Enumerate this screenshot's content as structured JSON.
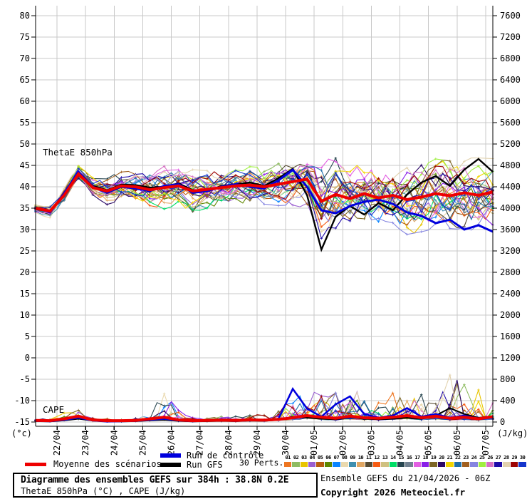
{
  "colors": {
    "mean": "#ee0000",
    "control": "#0000dd",
    "gfs": "#000000",
    "grid": "#c8c8c8",
    "axis": "#000000"
  },
  "legend": {
    "mean": "Moyenne des scénarios",
    "control": "Run de contrôle",
    "gfs": "Run GFS",
    "perts": "30 Perts."
  },
  "footer": {
    "title": "Diagramme des ensembles GEFS sur 384h : 38.8N 0.2E",
    "subtitle": "ThetaE 850hPa (°C) , CAPE (J/kg)",
    "run_info": "Ensemble GEFS du 21/04/2026 - 06Z",
    "copyright": "Copyright 2026 Meteociel.fr"
  },
  "chart_data": {
    "type": "line",
    "title": "Diagramme des ensembles GEFS sur 384h : 38.8N 0.2E",
    "x_dates": [
      "22/04",
      "23/04",
      "24/04",
      "25/04",
      "26/04",
      "27/04",
      "28/04",
      "29/04",
      "30/04",
      "01/05",
      "02/05",
      "03/05",
      "04/05",
      "05/05",
      "06/05",
      "07/05"
    ],
    "total_hours": 384,
    "step_hours": 12,
    "y_left": {
      "unit": "(°c)",
      "min": -15,
      "max": 80,
      "tick_step": 5,
      "ticks": [
        "80",
        "75",
        "70",
        "65",
        "60",
        "55",
        "50",
        "45",
        "40",
        "35",
        "30",
        "25",
        "20",
        "15",
        "10",
        "5",
        "0",
        "-5",
        "-10",
        "-15"
      ]
    },
    "y_right": {
      "unit": "(J/kg)",
      "min": 0,
      "max": 7600,
      "tick_step": 400,
      "ticks": [
        "7600",
        "7200",
        "6800",
        "6400",
        "6000",
        "5600",
        "5200",
        "4800",
        "4400",
        "4000",
        "3600",
        "3200",
        "2800",
        "2400",
        "2000",
        "1600",
        "1200",
        "800",
        "400",
        "0"
      ]
    },
    "grid": true,
    "theta_e": {
      "label": "ThetaE 850hPa",
      "mean": [
        35.0,
        34.3,
        38.0,
        43.0,
        39.8,
        39.0,
        40.2,
        40.0,
        39.3,
        39.8,
        40.2,
        39.0,
        39.4,
        39.8,
        40.2,
        40.4,
        40.0,
        40.6,
        41.2,
        41.8,
        36.6,
        38.2,
        37.2,
        38.4,
        37.4,
        38.0,
        37.0,
        37.6,
        38.4,
        37.9,
        38.6,
        38.0,
        38.8
      ],
      "control": [
        35.2,
        34.0,
        38.5,
        43.5,
        40.0,
        38.6,
        40.0,
        39.6,
        39.0,
        40.2,
        40.6,
        38.6,
        39.0,
        40.0,
        40.6,
        40.0,
        39.6,
        41.5,
        44.0,
        40.0,
        34.5,
        33.8,
        35.5,
        36.5,
        37.0,
        36.0,
        34.0,
        33.2,
        31.5,
        32.3,
        30.0,
        31.0,
        29.5
      ],
      "gfs": [
        34.8,
        34.2,
        38.3,
        43.2,
        40.2,
        39.2,
        40.5,
        40.4,
        39.8,
        40.0,
        40.8,
        39.2,
        39.0,
        40.2,
        40.6,
        41.0,
        40.2,
        42.0,
        44.2,
        38.0,
        25.3,
        33.0,
        35.5,
        33.5,
        36.2,
        34.5,
        38.2,
        41.0,
        42.5,
        40.2,
        44.0,
        46.5,
        43.5
      ],
      "spread": [
        1.0,
        1.3,
        1.8,
        2.0,
        2.2,
        2.6,
        2.6,
        3.0,
        3.5,
        4.0,
        3.5,
        4.0,
        3.5,
        3.5,
        3.5,
        3.5,
        3.5,
        4.0,
        4.5,
        5.5,
        7.5,
        7.0,
        6.0,
        5.5,
        6.0,
        6.0,
        6.5,
        6.5,
        6.5,
        6.5,
        6.5,
        7.0,
        7.0
      ]
    },
    "cape": {
      "label": "CAPE",
      "mean": [
        30,
        25,
        60,
        110,
        40,
        25,
        25,
        30,
        60,
        90,
        40,
        25,
        30,
        35,
        30,
        40,
        35,
        50,
        80,
        120,
        90,
        70,
        110,
        80,
        70,
        90,
        120,
        80,
        110,
        70,
        90,
        60,
        100
      ],
      "control": [
        20,
        15,
        40,
        80,
        30,
        10,
        15,
        20,
        40,
        60,
        30,
        15,
        25,
        30,
        20,
        35,
        30,
        60,
        620,
        250,
        100,
        330,
        480,
        150,
        80,
        120,
        260,
        100,
        150,
        80,
        120,
        60,
        90
      ],
      "gfs": [
        15,
        10,
        30,
        60,
        25,
        10,
        10,
        15,
        30,
        40,
        20,
        10,
        15,
        20,
        15,
        25,
        20,
        40,
        100,
        80,
        60,
        50,
        90,
        60,
        50,
        60,
        80,
        60,
        120,
        260,
        150,
        80,
        110
      ],
      "spread": [
        40,
        40,
        90,
        160,
        60,
        40,
        40,
        60,
        150,
        550,
        150,
        60,
        60,
        60,
        60,
        80,
        80,
        150,
        300,
        450,
        350,
        400,
        450,
        350,
        300,
        400,
        500,
        450,
        400,
        850,
        500,
        600,
        350
      ]
    },
    "perturbations": {
      "count": 30,
      "members": [
        {
          "n": "01",
          "color": "#ee7621"
        },
        {
          "n": "02",
          "color": "#8fbc62"
        },
        {
          "n": "03",
          "color": "#e8c500"
        },
        {
          "n": "04",
          "color": "#9a5fd0"
        },
        {
          "n": "05",
          "color": "#b85c0f"
        },
        {
          "n": "06",
          "color": "#5f8700"
        },
        {
          "n": "07",
          "color": "#0a84ff"
        },
        {
          "n": "08",
          "color": "#ead9ae"
        },
        {
          "n": "09",
          "color": "#3f8fb0"
        },
        {
          "n": "10",
          "color": "#e0a662"
        },
        {
          "n": "11",
          "color": "#564a31"
        },
        {
          "n": "12",
          "color": "#f75c13"
        },
        {
          "n": "13",
          "color": "#cfc080"
        },
        {
          "n": "14",
          "color": "#00dd66"
        },
        {
          "n": "15",
          "color": "#27454f"
        },
        {
          "n": "16",
          "color": "#708090"
        },
        {
          "n": "17",
          "color": "#e25fe2"
        },
        {
          "n": "18",
          "color": "#8a1fe8"
        },
        {
          "n": "19",
          "color": "#7d6625"
        },
        {
          "n": "20",
          "color": "#2d0a66"
        },
        {
          "n": "21",
          "color": "#f2d500"
        },
        {
          "n": "22",
          "color": "#1f6fa8"
        },
        {
          "n": "23",
          "color": "#a05f1f"
        },
        {
          "n": "24",
          "color": "#8585e0"
        },
        {
          "n": "25",
          "color": "#9fef3f"
        },
        {
          "n": "26",
          "color": "#d66fc4"
        },
        {
          "n": "27",
          "color": "#1f0aa8"
        },
        {
          "n": "28",
          "color": "#e2d2ae"
        },
        {
          "n": "29",
          "color": "#9e0505"
        },
        {
          "n": "30",
          "color": "#1535cc"
        }
      ]
    },
    "legend_position": "bottom"
  }
}
